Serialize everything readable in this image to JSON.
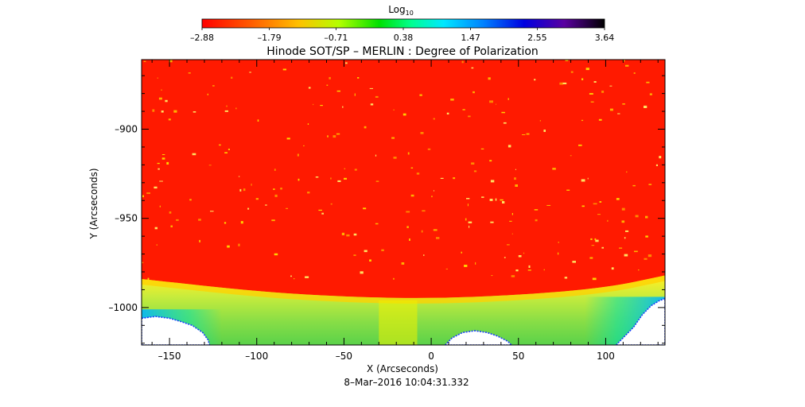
{
  "chart_data": {
    "type": "heatmap",
    "title": "Hinode SOT/SP – MERLIN : Degree of Polarization",
    "xlabel": "X (Arcseconds)",
    "ylabel": "Y (Arcseconds)",
    "date_label": "8–Mar–2016 10:04:31.332",
    "colorbar": {
      "label_base": "Log",
      "label_sub": "10",
      "min": -2.88,
      "max": 3.64,
      "tick_labels": [
        "–2.88",
        "–1.79",
        "–0.71",
        "0.38",
        "1.47",
        "2.55",
        "3.64"
      ],
      "tick_values": [
        -2.88,
        -1.79,
        -0.71,
        0.38,
        1.47,
        2.55,
        3.64
      ]
    },
    "xlim": [
      -166,
      134
    ],
    "ylim": [
      -1021,
      -861
    ],
    "x_ticks": [
      {
        "value": -150,
        "label": "–150"
      },
      {
        "value": -100,
        "label": "–100"
      },
      {
        "value": -50,
        "label": "–50"
      },
      {
        "value": 0,
        "label": "0"
      },
      {
        "value": 50,
        "label": "50"
      },
      {
        "value": 100,
        "label": "100"
      }
    ],
    "y_ticks": [
      {
        "value": -900,
        "label": "–900"
      },
      {
        "value": -950,
        "label": "–950"
      },
      {
        "value": -1000,
        "label": "–1000"
      }
    ],
    "limb": [
      [
        -166,
        -984
      ],
      [
        -100,
        -991
      ],
      [
        -50,
        -994
      ],
      [
        0,
        -995
      ],
      [
        50,
        -993
      ],
      [
        100,
        -989
      ],
      [
        134,
        -982
      ]
    ],
    "colors": {
      "disk": "#ff1a00",
      "limb_band": "#ffd000",
      "off_limb": "#9be040",
      "deep_off_limb": "#00c8b4",
      "no_data": "#ffffff"
    }
  }
}
